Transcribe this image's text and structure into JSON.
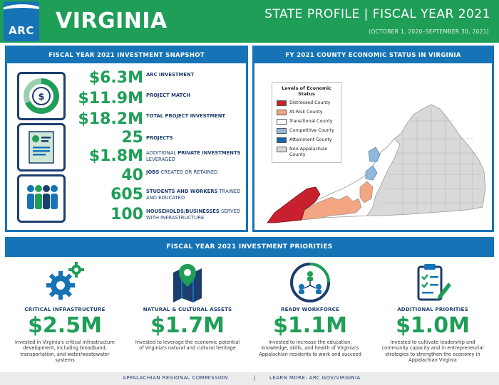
{
  "header": {
    "logo_text": "ARC",
    "state": "VIRGINIA",
    "profile_title": "STATE PROFILE  |  FISCAL YEAR 2021",
    "profile_sub": "(OCTOBER 1, 2020–SEPTEMBER 30, 2021)",
    "colors": {
      "green": "#1f9e57",
      "blue": "#1573b6",
      "navy": "#1d3d6e"
    }
  },
  "snapshot": {
    "title": "FISCAL YEAR 2021 INVESTMENT SNAPSHOT",
    "icons": [
      "pie-dollar-icon",
      "document-report-icon",
      "people-group-icon"
    ],
    "stats": [
      {
        "value": "$6.3M",
        "label_bold": "ARC INVESTMENT",
        "label_rest": ""
      },
      {
        "value": "$11.9M",
        "label_bold": "PROJECT MATCH",
        "label_rest": ""
      },
      {
        "value": "$18.2M",
        "label_bold": "TOTAL PROJECT INVESTMENT",
        "label_rest": ""
      },
      {
        "value": "25",
        "label_bold": "PROJECTS",
        "label_rest": ""
      },
      {
        "value": "$1.8M",
        "label_pre": "ADDITIONAL ",
        "label_bold": "PRIVATE INVESTMENTS",
        "label_rest": " LEVERAGED"
      },
      {
        "value": "40",
        "label_bold": "JOBS",
        "label_rest": " CREATED OR RETAINED"
      },
      {
        "value": "605",
        "label_bold": "STUDENTS AND WORKERS",
        "label_rest": " TRAINED AND EDUCATED"
      },
      {
        "value": "100",
        "label_bold": "HOUSEHOLDS/BUSINESSES",
        "label_rest": " SERVED WITH INFRASTRUCTURE"
      }
    ]
  },
  "map": {
    "title": "FY 2021 COUNTY ECONOMIC STATUS IN VIRGINIA",
    "legend_title": "Levels of Economic Status",
    "legend": [
      {
        "label": "Distressed County",
        "color": "#c8202f"
      },
      {
        "label": "At-Risk County",
        "color": "#f4a582"
      },
      {
        "label": "Transitional County",
        "color": "#ffffff"
      },
      {
        "label": "Competitive County",
        "color": "#8fb9dc"
      },
      {
        "label": "Attainment County",
        "color": "#1a64a8"
      },
      {
        "label": "Non-Appalachian County",
        "color": "#d9d9d9"
      }
    ]
  },
  "priorities": {
    "title": "FISCAL YEAR 2021 INVESTMENT PRIORITIES",
    "items": [
      {
        "icon": "gears-icon",
        "title": "CRITICAL INFRASTRUCTURE",
        "value": "$2.5M",
        "desc": "Invested in Virginia's critical infrastructure development, including broadband, transportation, and water/wastewater systems"
      },
      {
        "icon": "map-pin-icon",
        "title": "NATURAL & CULTURAL ASSETS",
        "value": "$1.7M",
        "desc": "Invested to leverage the economic potential of Virginia's natural and cultural heritage"
      },
      {
        "icon": "workforce-network-icon",
        "title": "READY WORKFORCE",
        "value": "$1.1M",
        "desc": "Invested to increase the education, knowledge, skills, and health of Virginia's Appalachian residents to work and succeed"
      },
      {
        "icon": "clipboard-check-icon",
        "title": "ADDITIONAL PRIORITIES",
        "value": "$1.0M",
        "desc": "Invested to cultivate leadership and community capacity and in entrepreneurial strategies to strengthen the economy in Appalachian Virginia"
      }
    ]
  },
  "footer": {
    "org": "APPALACHIAN REGIONAL COMMISSION",
    "separator": "|",
    "learn_more": "LEARN MORE: ARC.GOV/VIRGINIA"
  }
}
